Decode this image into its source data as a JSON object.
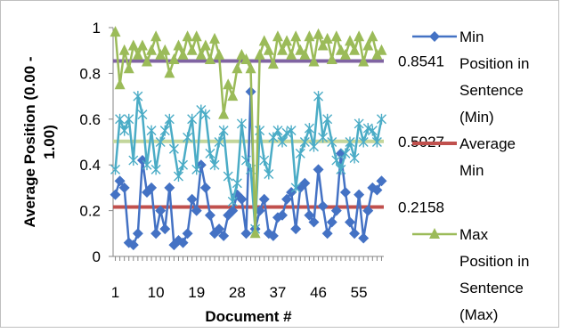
{
  "chart_data": {
    "type": "line",
    "xlabel": "Document #",
    "ylabel": "Average Position (0.00 - 1.00)",
    "ylim": [
      0,
      1
    ],
    "y_ticks": [
      "0",
      "0.2",
      "0.4",
      "0.6",
      "0.8",
      "1"
    ],
    "x_ticks": [
      "1",
      "10",
      "19",
      "28",
      "37",
      "46",
      "55"
    ],
    "x_tick_values": [
      1,
      10,
      19,
      28,
      37,
      46,
      55
    ],
    "x_range": [
      1,
      60
    ],
    "grid": false,
    "legend_position": "right",
    "x": [
      1,
      2,
      3,
      4,
      5,
      6,
      7,
      8,
      9,
      10,
      11,
      12,
      13,
      14,
      15,
      16,
      17,
      18,
      19,
      20,
      21,
      22,
      23,
      24,
      25,
      26,
      27,
      28,
      29,
      30,
      31,
      32,
      33,
      34,
      35,
      36,
      37,
      38,
      39,
      40,
      41,
      42,
      43,
      44,
      45,
      46,
      47,
      48,
      49,
      50,
      51,
      52,
      53,
      54,
      55,
      56,
      57,
      58,
      59,
      60
    ],
    "series": [
      {
        "name": "Min Position in Sentence (Min)",
        "color": "#4472C4",
        "marker": "diamond",
        "values": [
          0.27,
          0.33,
          0.3,
          0.06,
          0.05,
          0.1,
          0.42,
          0.28,
          0.3,
          0.1,
          0.2,
          0.12,
          0.3,
          0.05,
          0.07,
          0.06,
          0.1,
          0.25,
          0.2,
          0.4,
          0.3,
          0.18,
          0.1,
          0.12,
          0.09,
          0.18,
          0.2,
          0.27,
          0.25,
          0.1,
          0.72,
          0.12,
          0.2,
          0.25,
          0.1,
          0.09,
          0.17,
          0.18,
          0.25,
          0.28,
          0.12,
          0.3,
          0.32,
          0.18,
          0.15,
          0.38,
          0.22,
          0.1,
          0.15,
          0.2,
          0.45,
          0.28,
          0.15,
          0.1,
          0.27,
          0.08,
          0.2,
          0.3,
          0.29,
          0.33
        ]
      },
      {
        "name": "Average Min",
        "color": "#C0504D",
        "marker": "none",
        "value": 0.2158,
        "label": "0.2158"
      },
      {
        "name": "",
        "color": "#4BACC6",
        "marker": "star",
        "values": [
          0.38,
          0.6,
          0.55,
          0.6,
          0.42,
          0.7,
          0.62,
          0.4,
          0.55,
          0.38,
          0.5,
          0.55,
          0.6,
          0.47,
          0.35,
          0.4,
          0.52,
          0.6,
          0.38,
          0.64,
          0.62,
          0.45,
          0.4,
          0.5,
          0.55,
          0.35,
          0.24,
          0.32,
          0.58,
          0.42,
          0.38,
          0.12,
          0.55,
          0.42,
          0.36,
          0.52,
          0.55,
          0.5,
          0.54,
          0.55,
          0.3,
          0.45,
          0.5,
          0.56,
          0.48,
          0.7,
          0.52,
          0.6,
          0.5,
          0.42,
          0.38,
          0.45,
          0.5,
          0.43,
          0.58,
          0.5,
          0.56,
          0.55,
          0.5,
          0.6
        ]
      },
      {
        "name": "",
        "color": "#C3D69B",
        "marker": "none",
        "value": 0.5027,
        "label": "0.5027"
      },
      {
        "name": "Max Position in Sentence (Max)",
        "color": "#9BBB59",
        "marker": "triangle",
        "values": [
          0.98,
          0.75,
          0.9,
          0.82,
          0.92,
          0.88,
          0.92,
          0.85,
          0.9,
          0.96,
          0.88,
          0.9,
          0.8,
          0.86,
          0.92,
          0.88,
          0.96,
          0.9,
          0.96,
          0.88,
          0.92,
          0.86,
          0.95,
          0.88,
          0.62,
          0.75,
          0.7,
          0.82,
          0.88,
          0.86,
          0.82,
          0.1,
          0.88,
          0.94,
          0.9,
          0.84,
          0.96,
          0.9,
          0.94,
          0.88,
          0.96,
          0.9,
          0.88,
          0.96,
          0.85,
          0.97,
          0.92,
          0.95,
          0.86,
          0.96,
          0.9,
          0.88,
          0.94,
          0.9,
          0.96,
          0.85,
          0.92,
          0.96,
          0.88,
          0.9
        ]
      },
      {
        "name": "",
        "color": "#8064A2",
        "marker": "none",
        "value": 0.8541,
        "label": "0.8541"
      }
    ]
  }
}
